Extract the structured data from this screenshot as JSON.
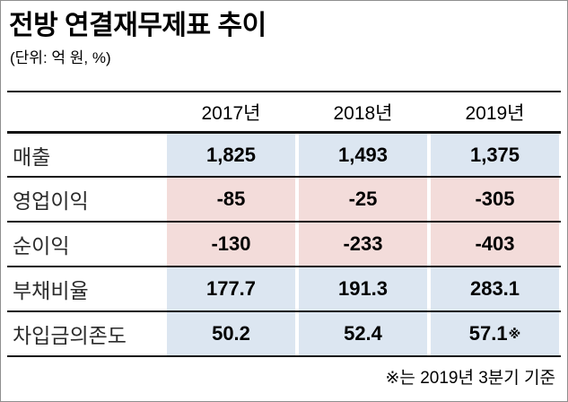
{
  "header": {
    "title": "전방 연결재무제표 추이",
    "unit_note": "(단위: 억 원, %)"
  },
  "table": {
    "columns": [
      "2017년",
      "2018년",
      "2019년"
    ],
    "rows": [
      {
        "label": "매출",
        "values": [
          "1,825",
          "1,493",
          "1,375"
        ]
      },
      {
        "label": "영업이익",
        "values": [
          "-85",
          "-25",
          "-305"
        ]
      },
      {
        "label": "순이익",
        "values": [
          "-130",
          "-233",
          "-403"
        ]
      },
      {
        "label": "부채비율",
        "values": [
          "177.7",
          "191.3",
          "283.1"
        ]
      },
      {
        "label": "차입금의존도",
        "values": [
          "50.2",
          "52.4",
          "57.1"
        ]
      }
    ],
    "footnote_marker": "※"
  },
  "footer": {
    "note": "※는 2019년 3분기 기준"
  },
  "colors": {
    "row_blue": "#dce6f1",
    "row_pink": "#f3dcda",
    "line_black": "#141414"
  },
  "chart_data": {
    "type": "table",
    "title": "전방 연결재무제표 추이",
    "unit": "억 원, %",
    "columns": [
      "2017년",
      "2018년",
      "2019년"
    ],
    "rows": [
      {
        "label": "매출",
        "values": [
          1825,
          1493,
          1375
        ]
      },
      {
        "label": "영업이익",
        "values": [
          -85,
          -25,
          -305
        ]
      },
      {
        "label": "순이익",
        "values": [
          -130,
          -233,
          -403
        ]
      },
      {
        "label": "부채비율",
        "values": [
          177.7,
          191.3,
          283.1
        ]
      },
      {
        "label": "차입금의존도",
        "values": [
          50.2,
          52.4,
          57.1
        ]
      }
    ],
    "footnote": "※는 2019년 3분기 기준",
    "footnote_applies_to": {
      "row": "차입금의존도",
      "column": "2019년"
    }
  }
}
